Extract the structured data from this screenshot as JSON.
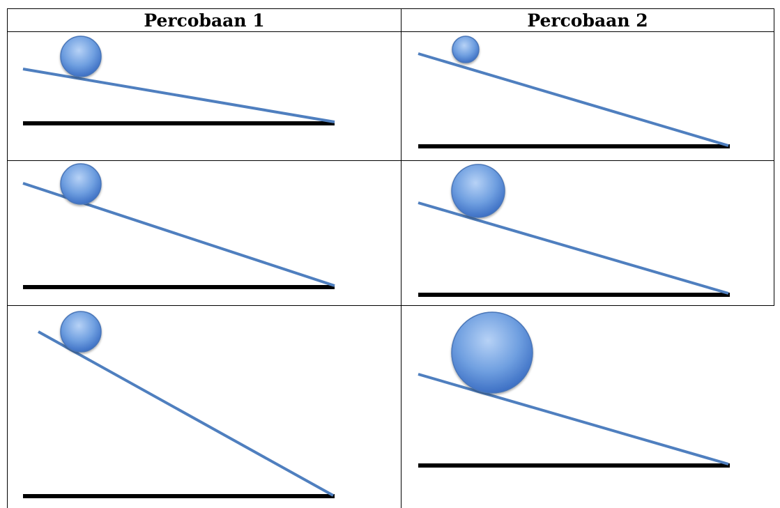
{
  "table": {
    "columns": [
      {
        "header": "Percobaan 1"
      },
      {
        "header": "Percobaan 2"
      }
    ]
  },
  "colors": {
    "ramp": "#4f7fbf",
    "ground": "#000000",
    "ball_light": "#a9c8f2",
    "ball_dark": "#3a6fc4",
    "ball_stroke": "#4a76b8",
    "grid": "#000000"
  }
}
